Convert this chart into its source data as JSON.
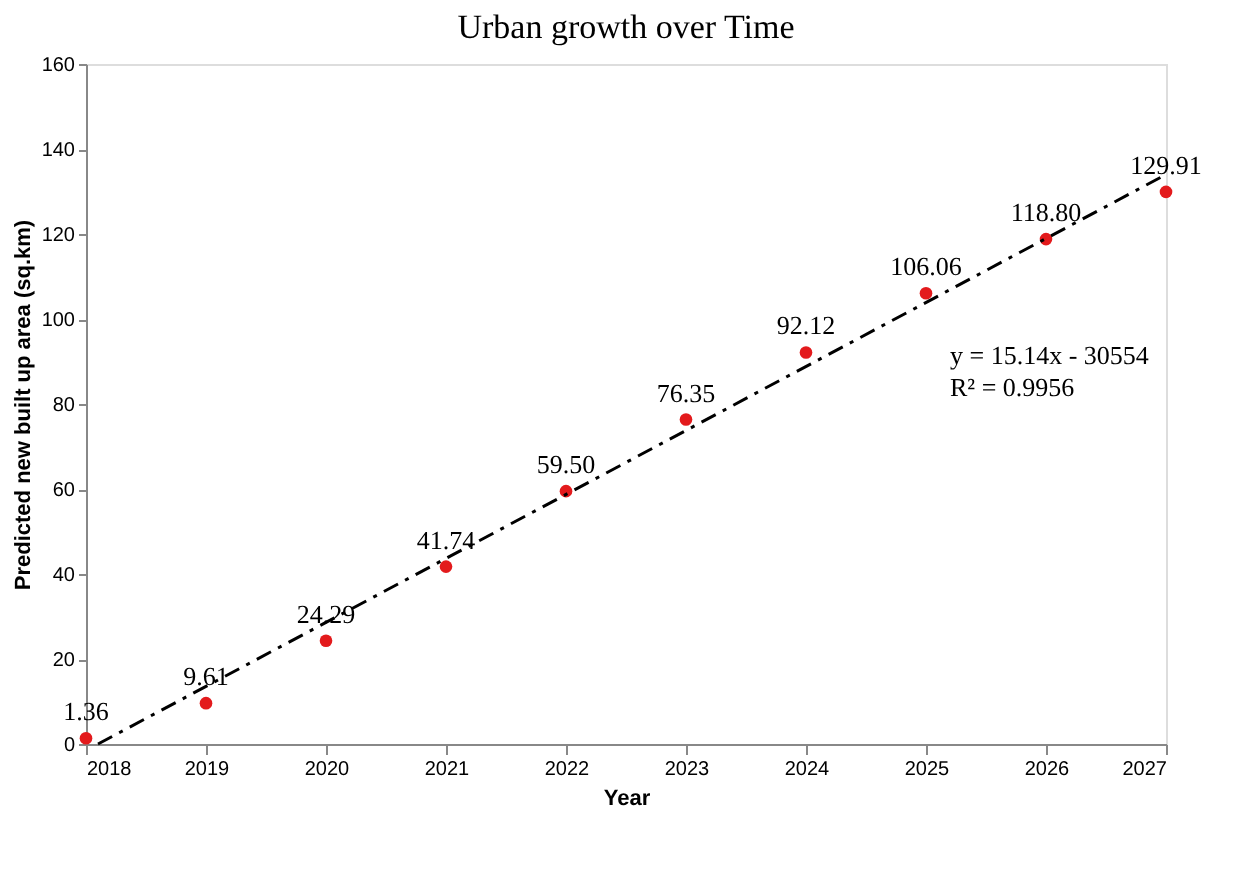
{
  "chart_data": {
    "type": "scatter",
    "title": "Urban growth over Time",
    "xlabel": "Year",
    "ylabel": "Predicted new built up area (sq.km)",
    "xlim": [
      2018,
      2027
    ],
    "xticks": [
      2018,
      2019,
      2020,
      2021,
      2022,
      2023,
      2024,
      2025,
      2026,
      2027
    ],
    "ylim": [
      0,
      160
    ],
    "yticks": [
      0,
      20,
      40,
      60,
      80,
      100,
      120,
      140,
      160
    ],
    "grid": false,
    "series": [
      {
        "type": "scatter",
        "color": "#e31a1c",
        "marker": "circle",
        "x": [
          2018,
          2019,
          2020,
          2021,
          2022,
          2023,
          2024,
          2025,
          2026,
          2027
        ],
        "values": [
          1.36,
          9.61,
          24.29,
          41.74,
          59.5,
          76.35,
          92.12,
          106.06,
          118.8,
          129.91
        ],
        "value_labels": [
          "1.36",
          "9.61",
          "24.29",
          "41.74",
          "59.50",
          "76.35",
          "92.12",
          "106.06",
          "118.80",
          "129.91"
        ]
      },
      {
        "type": "line",
        "color": "#000000",
        "line_style": "dashed",
        "x": [
          2018.1,
          2027
        ],
        "values": [
          0,
          134
        ]
      }
    ],
    "annotations": [
      "y = 15.14x - 30554",
      "R² = 0.9956"
    ]
  }
}
